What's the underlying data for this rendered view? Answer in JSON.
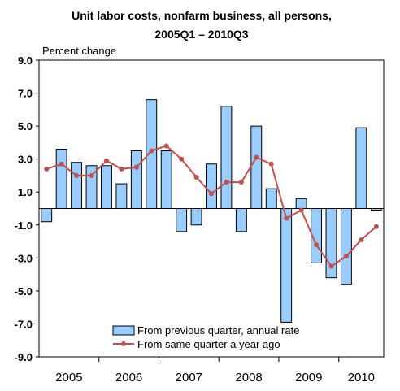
{
  "chart_data": {
    "type": "bar+line",
    "title_line1": "Unit labor costs, nonfarm business, all persons,",
    "title_line2": "2005Q1 – 2010Q3",
    "ylabel": "Percent change",
    "ylim": [
      -9.0,
      9.0
    ],
    "yticks": [
      "9.0",
      "7.0",
      "5.0",
      "3.0",
      "1.0",
      "-1.0",
      "-3.0",
      "-5.0",
      "-7.0",
      "-9.0"
    ],
    "ytick_values": [
      9,
      7,
      5,
      3,
      1,
      -1,
      -3,
      -5,
      -7,
      -9
    ],
    "year_labels": [
      "2005",
      "2006",
      "2007",
      "2008",
      "2009",
      "2010"
    ],
    "x": [
      "2005Q1",
      "2005Q2",
      "2005Q3",
      "2005Q4",
      "2006Q1",
      "2006Q2",
      "2006Q3",
      "2006Q4",
      "2007Q1",
      "2007Q2",
      "2007Q3",
      "2007Q4",
      "2008Q1",
      "2008Q2",
      "2008Q3",
      "2008Q4",
      "2009Q1",
      "2009Q2",
      "2009Q3",
      "2009Q4",
      "2010Q1",
      "2010Q2",
      "2010Q3"
    ],
    "series": [
      {
        "name": "From previous quarter, annual rate",
        "kind": "bar",
        "color": "#99ccff",
        "values": [
          -0.8,
          3.6,
          2.8,
          2.6,
          2.6,
          1.5,
          3.5,
          6.6,
          3.5,
          -1.4,
          -1.0,
          2.7,
          6.2,
          -1.4,
          5.0,
          1.2,
          -6.9,
          0.6,
          -3.3,
          -4.2,
          -4.6,
          4.9,
          -0.1
        ]
      },
      {
        "name": "From same quarter a year ago",
        "kind": "line",
        "color": "#c0504d",
        "values": [
          2.4,
          2.7,
          2.0,
          2.0,
          2.9,
          2.4,
          2.5,
          3.5,
          3.8,
          3.0,
          1.9,
          0.9,
          1.6,
          1.6,
          3.1,
          2.7,
          -0.6,
          -0.1,
          -2.2,
          -3.5,
          -2.9,
          -1.9,
          -1.1
        ]
      }
    ],
    "legend_position": "bottom-center",
    "grid": false
  }
}
